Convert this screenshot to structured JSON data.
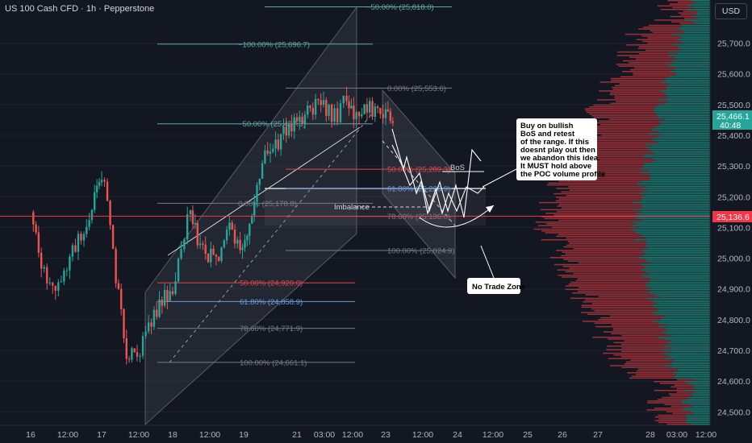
{
  "header": {
    "symbol": "US 100 Cash CFD · 1h · Pepperstone"
  },
  "price_axis": {
    "currency": "USD",
    "ticks": [
      "25,700.0",
      "25,600.0",
      "25,500.0",
      "25,400.0",
      "25,300.0",
      "25,200.0",
      "25,100.0",
      "25,000.0",
      "24,900.0",
      "24,800.0",
      "24,700.0",
      "24,600.0",
      "24,500.0"
    ],
    "current_price": "25,466.1",
    "countdown": "40:48",
    "line_price": "25,136.6"
  },
  "time_axis": {
    "ticks": [
      "16",
      "12:00",
      "17",
      "12:00",
      "18",
      "12:00",
      "19",
      "21",
      "03:00",
      "12:00",
      "23",
      "12:00",
      "24",
      "12:00",
      "25",
      "26",
      "27",
      "28",
      "03:00",
      "12:00"
    ]
  },
  "fib_upper": [
    {
      "label": "−50.00% (25,818.0)"
    },
    {
      "label": "−100.00% (25,696.7)"
    },
    {
      "label": "0.00% (25,553.6)"
    },
    {
      "label": "−50.00% (25,437.3)"
    },
    {
      "label": "50.00% (25,289.3)"
    },
    {
      "label": "61.80% (25,226.9)"
    },
    {
      "label": "0.00% (25,178.8)"
    },
    {
      "label": "78.60% (25,136.0)"
    },
    {
      "label": "100.00% (25,024.9)"
    }
  ],
  "fib_lower": [
    {
      "label": "50.00% (24,920.0)"
    },
    {
      "label": "61.80% (24,858.9)"
    },
    {
      "label": "78.60% (24,771.9)"
    },
    {
      "label": "100.00% (24,661.1)"
    }
  ],
  "annotations": {
    "bos": "BoS",
    "imbalance": "Imbalance",
    "note_lines": [
      "Buy on bullish",
      "BoS and retest",
      "of the range. If this",
      "doesnt play out then",
      "we abandon this idea.",
      "It MUST hold above",
      "the POC volume profile"
    ],
    "no_trade": "No Trade Zone"
  },
  "colors": {
    "background": "#131722",
    "up": "#26a69a",
    "down": "#ef5350",
    "fib_teal": "#5fa8a4",
    "fib_red": "#e0474c",
    "fib_blue": "#6a9bd8",
    "fib_gray": "#787b86",
    "price_line": "#f23645"
  },
  "chart_data": {
    "type": "candlestick",
    "title": "US 100 Cash CFD · 1h · Pepperstone",
    "xlabel": "",
    "ylabel": "",
    "ylim": [
      24460,
      25870
    ],
    "current_price": 25466.1,
    "horizontal_line": 25136.6,
    "series": [
      {
        "name": "",
        "close_path": [
          [
            16.0,
            25150
          ],
          [
            16.15,
            24980
          ],
          [
            16.35,
            24870
          ],
          [
            16.55,
            25010
          ],
          [
            16.75,
            25100
          ],
          [
            16.9,
            25200
          ],
          [
            17.0,
            25240
          ],
          [
            17.08,
            25200
          ],
          [
            17.2,
            24940
          ],
          [
            17.35,
            24700
          ],
          [
            17.5,
            24680
          ],
          [
            17.7,
            24800
          ],
          [
            17.85,
            24860
          ],
          [
            18.0,
            24900
          ],
          [
            18.12,
            25050
          ],
          [
            18.25,
            25170
          ],
          [
            18.35,
            25060
          ],
          [
            18.5,
            25010
          ],
          [
            18.65,
            25020
          ],
          [
            18.8,
            25090
          ],
          [
            18.95,
            25020
          ],
          [
            19.05,
            25060
          ],
          [
            19.15,
            25200
          ],
          [
            19.3,
            25330
          ],
          [
            19.45,
            25370
          ],
          [
            19.6,
            25420
          ],
          [
            19.75,
            25450
          ],
          [
            19.9,
            25470
          ],
          [
            20.05,
            25500
          ],
          [
            20.2,
            25470
          ],
          [
            20.32,
            25470
          ],
          [
            20.45,
            25540
          ],
          [
            20.55,
            25470
          ],
          [
            20.7,
            25485
          ],
          [
            20.85,
            25490
          ],
          [
            21.0,
            25460
          ],
          [
            21.1,
            25440
          ]
        ]
      }
    ]
  }
}
